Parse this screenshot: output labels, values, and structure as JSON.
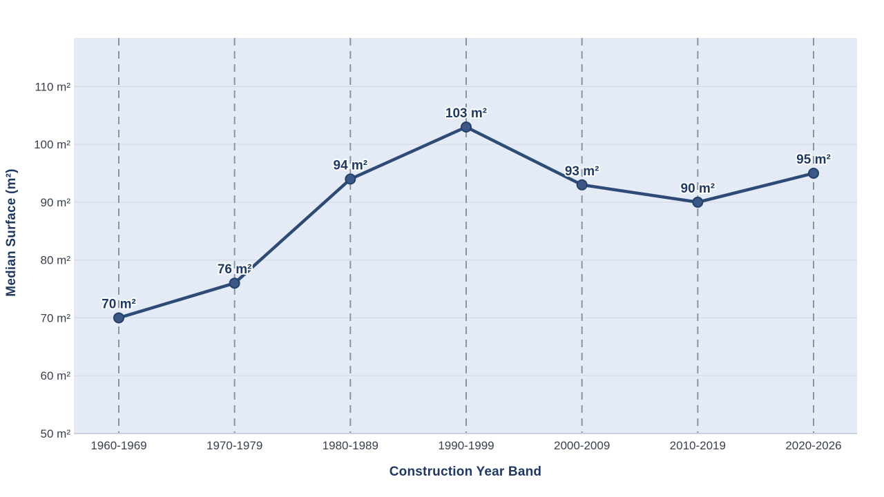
{
  "page": {
    "background": "#ffffff"
  },
  "chart_data": {
    "type": "line",
    "title": "",
    "xlabel": "Construction Year Band",
    "ylabel": "Median Surface (m²)",
    "categories": [
      "1960-1969",
      "1970-1979",
      "1980-1989",
      "1990-1999",
      "2000-2009",
      "2010-2019",
      "2020-2026"
    ],
    "series": [
      {
        "name": "Median Surface",
        "values": [
          70,
          76,
          94,
          103,
          93,
          90,
          95
        ],
        "point_labels": [
          "70 m²",
          "76 m²",
          "94 m²",
          "103 m²",
          "93 m²",
          "90 m²",
          "95 m²"
        ]
      }
    ],
    "ytick_values": [
      50,
      60,
      70,
      80,
      90,
      100,
      110
    ],
    "ytick_labels": [
      "50 m²",
      "60 m²",
      "70 m²",
      "80 m²",
      "90 m²",
      "100 m²",
      "110 m²"
    ],
    "ylim": [
      50,
      118.4
    ],
    "grid": {
      "vertical": "dashed",
      "horizontal": "solid"
    },
    "legend": "none",
    "colors": {
      "plot_background": "#e4ebf7",
      "line": "#2e4b77",
      "marker_fill": "#3a5788",
      "marker_stroke": "#24406b",
      "vertical_grid": "#8893a4",
      "horizontal_grid": "#d6dbe6",
      "bottom_axis_line": "#c7d1e3",
      "tick_text": "#383f4d",
      "point_label_text": "#1e3a66",
      "axis_title_text": "#1f3864"
    }
  }
}
